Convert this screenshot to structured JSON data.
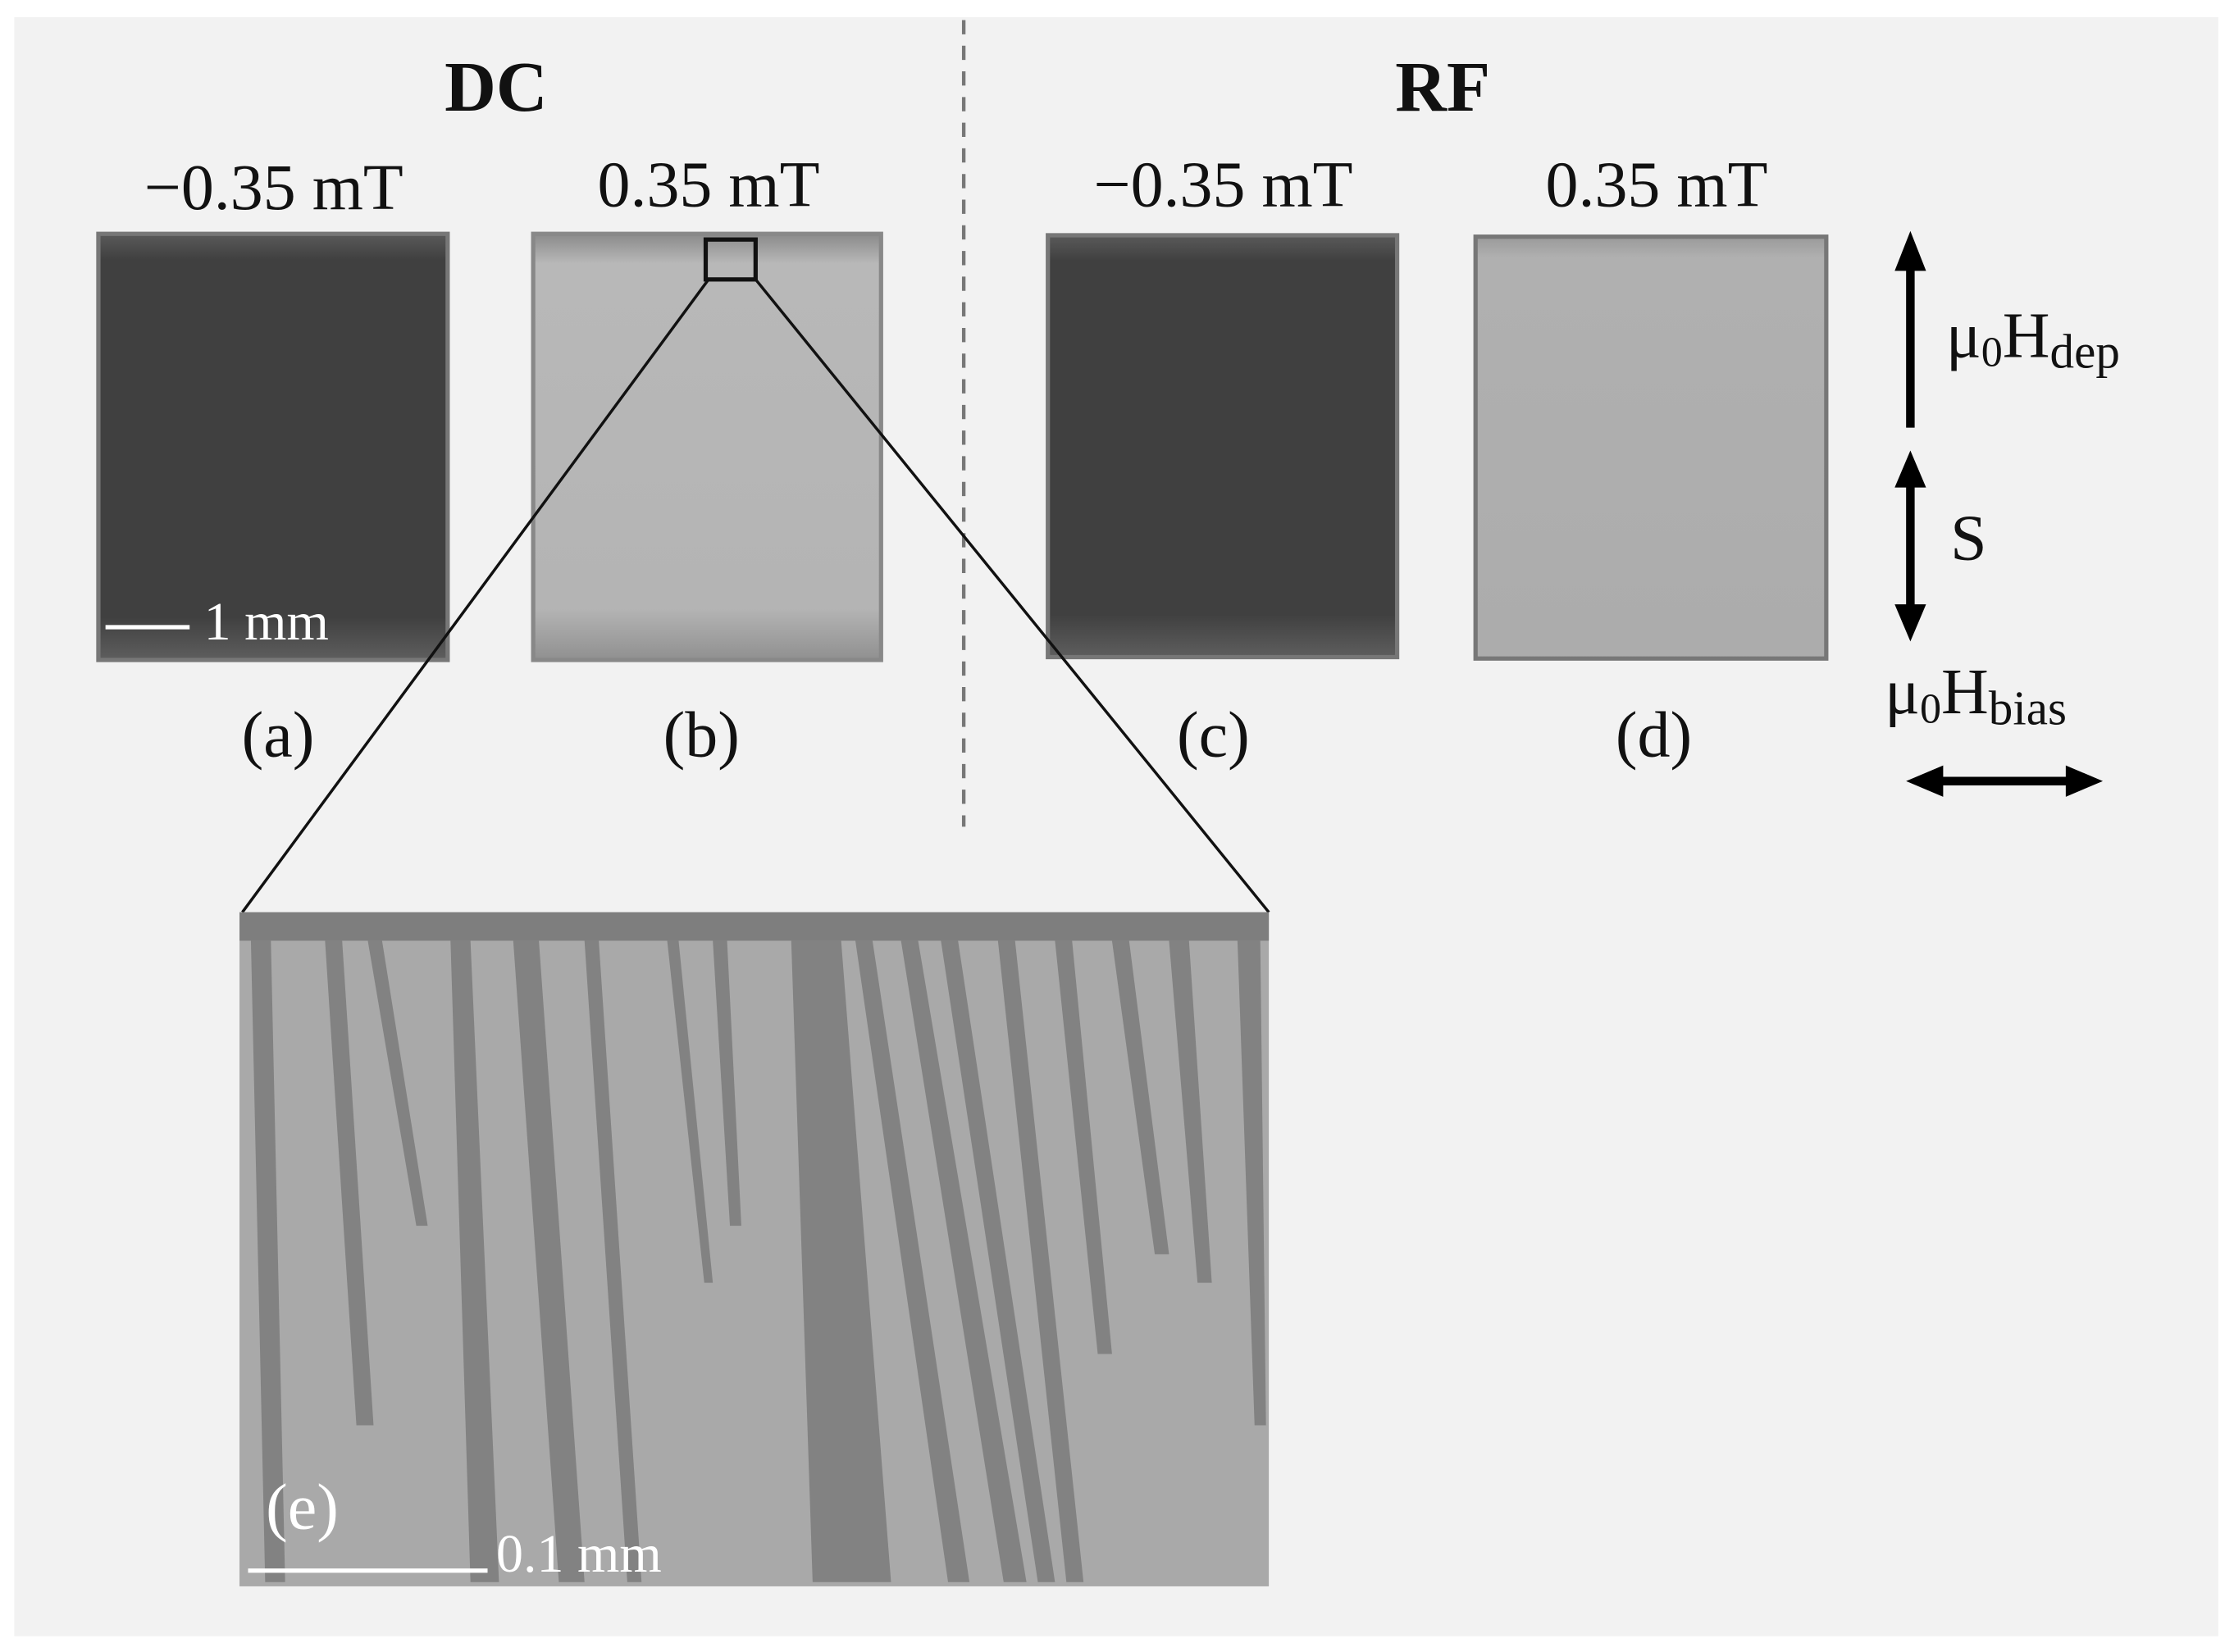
{
  "header": {
    "left": "DC",
    "right": "RF"
  },
  "panels": [
    {
      "field": "−0.35 mT",
      "label": "(a)"
    },
    {
      "field": "0.35 mT",
      "label": "(b)"
    },
    {
      "field": "−0.35 mT",
      "label": "(c)"
    },
    {
      "field": "0.35 mT",
      "label": "(d)"
    },
    {
      "label": "(e)"
    }
  ],
  "scale_bars": {
    "overview": "1 mm",
    "zoom": "0.1 mm"
  },
  "legend": {
    "depolarization": {
      "symbol": "μ",
      "sub": "0",
      "main": "H",
      "index": "dep"
    },
    "strip": "S",
    "bias": {
      "symbol": "μ",
      "sub": "0",
      "main": "H",
      "index": "bias"
    }
  }
}
